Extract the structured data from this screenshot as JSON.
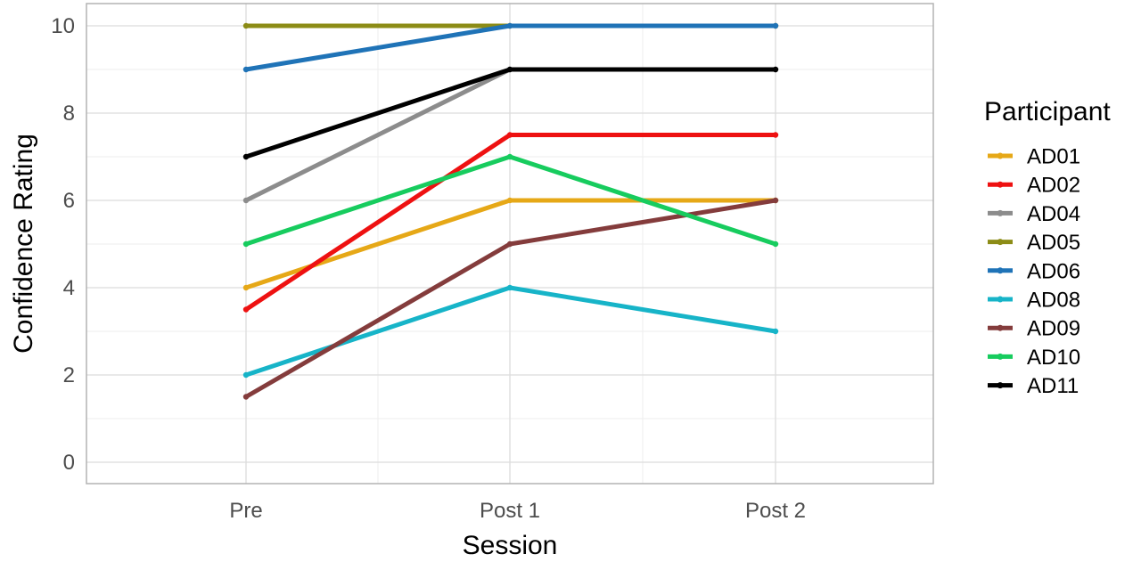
{
  "chart_data": {
    "type": "line",
    "xlabel": "Session",
    "ylabel": "Confidence Rating",
    "categories": [
      "Pre",
      "Post 1",
      "Post 2"
    ],
    "ylim": [
      0,
      10
    ],
    "yticks": [
      0,
      2,
      4,
      6,
      8,
      10
    ],
    "grid": true,
    "legend": {
      "title": "Participant",
      "position": "right"
    },
    "series": [
      {
        "name": "AD01",
        "color": "#E6A817",
        "values": [
          4,
          6,
          6
        ]
      },
      {
        "name": "AD02",
        "color": "#EE1111",
        "values": [
          3.5,
          7.5,
          7.5
        ]
      },
      {
        "name": "AD04",
        "color": "#8C8C8C",
        "values": [
          6,
          9,
          9
        ]
      },
      {
        "name": "AD05",
        "color": "#8C8C16",
        "values": [
          10,
          10,
          10
        ]
      },
      {
        "name": "AD06",
        "color": "#1F73B7",
        "values": [
          9,
          10,
          10
        ]
      },
      {
        "name": "AD08",
        "color": "#17B4C8",
        "values": [
          2,
          4,
          3
        ]
      },
      {
        "name": "AD09",
        "color": "#843C3C",
        "values": [
          1.5,
          5,
          6
        ]
      },
      {
        "name": "AD10",
        "color": "#17CC5E",
        "values": [
          5,
          7,
          5
        ]
      },
      {
        "name": "AD11",
        "color": "#000000",
        "values": [
          7,
          9,
          9
        ]
      }
    ]
  }
}
